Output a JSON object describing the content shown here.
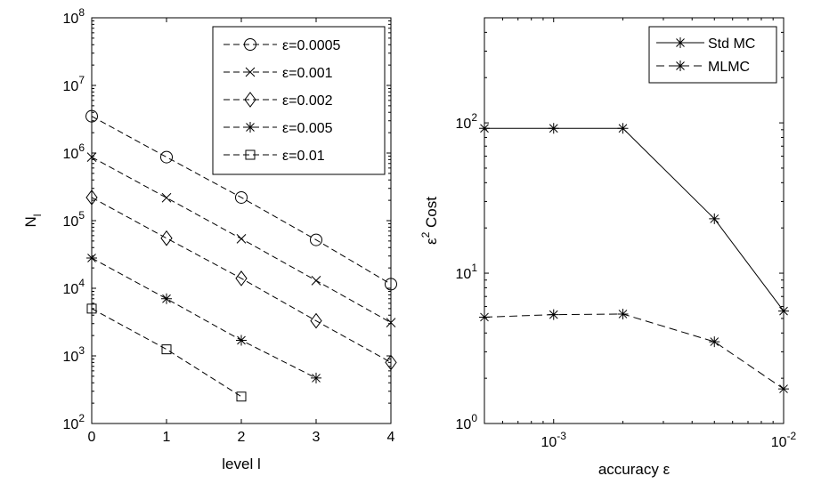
{
  "chart_data": [
    {
      "type": "line",
      "xlabel": "level l",
      "ylabel": "N_l",
      "yscale": "log",
      "xlim": [
        0,
        4
      ],
      "ylim": [
        100,
        100000000
      ],
      "x_ticks": [
        "0",
        "1",
        "2",
        "3",
        "4"
      ],
      "y_ticks": [
        {
          "base": "10",
          "exp": "2"
        },
        {
          "base": "10",
          "exp": "3"
        },
        {
          "base": "10",
          "exp": "4"
        },
        {
          "base": "10",
          "exp": "5"
        },
        {
          "base": "10",
          "exp": "6"
        },
        {
          "base": "10",
          "exp": "7"
        },
        {
          "base": "10",
          "exp": "8"
        }
      ],
      "legend_position": "top-right",
      "series": [
        {
          "name": "ε=0.0005",
          "marker": "circle",
          "x": [
            0,
            1,
            2,
            3,
            4
          ],
          "y": [
            3500000,
            870000,
            220000,
            52000,
            11500
          ]
        },
        {
          "name": "ε=0.001",
          "marker": "x",
          "x": [
            0,
            1,
            2,
            3,
            4
          ],
          "y": [
            870000,
            218000,
            54000,
            13000,
            3100
          ]
        },
        {
          "name": "ε=0.002",
          "marker": "diamond",
          "x": [
            0,
            1,
            2,
            3,
            4
          ],
          "y": [
            220000,
            55000,
            14000,
            3300,
            800
          ]
        },
        {
          "name": "ε=0.005",
          "marker": "star",
          "x": [
            0,
            1,
            2,
            3
          ],
          "y": [
            28000,
            7000,
            1700,
            470
          ]
        },
        {
          "name": "ε=0.01",
          "marker": "square",
          "x": [
            0,
            1,
            2
          ],
          "y": [
            5000,
            1250,
            250
          ]
        }
      ]
    },
    {
      "type": "line",
      "xlabel": "accuracy ε",
      "ylabel": "ε² Cost",
      "ylabel_base": "ε",
      "ylabel_sup": "2",
      "ylabel_rest": " Cost",
      "xscale": "log",
      "yscale": "log",
      "xlim": [
        0.0005,
        0.01
      ],
      "ylim": [
        1,
        500
      ],
      "x_ticks": [
        {
          "base": "10",
          "exp": "-3"
        },
        {
          "base": "10",
          "exp": "-2"
        }
      ],
      "y_ticks": [
        {
          "base": "10",
          "exp": "0"
        },
        {
          "base": "10",
          "exp": "1"
        },
        {
          "base": "10",
          "exp": "2"
        }
      ],
      "legend_position": "top-right",
      "series": [
        {
          "name": "Std MC",
          "style": "solid",
          "marker": "star",
          "x": [
            0.0005,
            0.001,
            0.002,
            0.005,
            0.01
          ],
          "y": [
            92,
            92,
            92,
            23,
            5.6
          ]
        },
        {
          "name": "MLMC",
          "style": "dashed",
          "marker": "star",
          "x": [
            0.0005,
            0.001,
            0.002,
            0.005,
            0.01
          ],
          "y": [
            5.1,
            5.3,
            5.35,
            3.5,
            1.7
          ]
        }
      ]
    }
  ]
}
